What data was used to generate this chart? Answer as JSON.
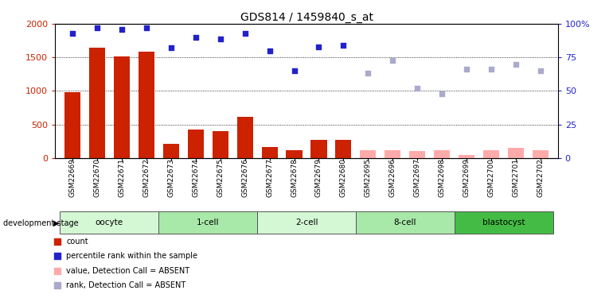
{
  "title": "GDS814 / 1459840_s_at",
  "samples": [
    "GSM22669",
    "GSM22670",
    "GSM22671",
    "GSM22672",
    "GSM22673",
    "GSM22674",
    "GSM22675",
    "GSM22676",
    "GSM22677",
    "GSM22678",
    "GSM22679",
    "GSM22680",
    "GSM22695",
    "GSM22696",
    "GSM22697",
    "GSM22698",
    "GSM22699",
    "GSM22700",
    "GSM22701",
    "GSM22702"
  ],
  "bar_values": [
    980,
    1650,
    1510,
    1580,
    210,
    420,
    400,
    610,
    160,
    110,
    270,
    270,
    null,
    null,
    null,
    null,
    null,
    null,
    null,
    null
  ],
  "bar_absent_values": [
    null,
    null,
    null,
    null,
    null,
    null,
    null,
    null,
    null,
    null,
    null,
    null,
    110,
    110,
    100,
    110,
    50,
    120,
    155,
    115
  ],
  "rank_values": [
    93,
    97,
    96,
    97,
    82,
    90,
    89,
    93,
    80,
    65,
    83,
    84,
    null,
    null,
    null,
    null,
    null,
    null,
    null,
    null
  ],
  "rank_absent_values": [
    null,
    null,
    null,
    null,
    null,
    null,
    null,
    null,
    null,
    null,
    null,
    null,
    63,
    73,
    52,
    48,
    66,
    66,
    70,
    65
  ],
  "stages": [
    {
      "label": "oocyte",
      "start": 0,
      "end": 4,
      "color": "#d4f7d4"
    },
    {
      "label": "1-cell",
      "start": 4,
      "end": 8,
      "color": "#a8e8a8"
    },
    {
      "label": "2-cell",
      "start": 8,
      "end": 12,
      "color": "#d4f7d4"
    },
    {
      "label": "8-cell",
      "start": 12,
      "end": 16,
      "color": "#a8e8a8"
    },
    {
      "label": "blastocyst",
      "start": 16,
      "end": 20,
      "color": "#44bb44"
    }
  ],
  "ylim_left": [
    0,
    2000
  ],
  "ylim_right": [
    0,
    100
  ],
  "yticks_left": [
    0,
    500,
    1000,
    1500,
    2000
  ],
  "yticks_right": [
    0,
    25,
    50,
    75,
    100
  ],
  "bar_color": "#cc2200",
  "bar_absent_color": "#ffaaaa",
  "rank_color": "#2222cc",
  "rank_absent_color": "#aaaacc",
  "title_fontsize": 10,
  "axis_color_left": "#cc2200",
  "axis_color_right": "#2222cc",
  "bg_color": "#ffffff",
  "grid_color": "#000000",
  "tick_color_left": "#cc2200",
  "tick_color_right": "#2222cc"
}
